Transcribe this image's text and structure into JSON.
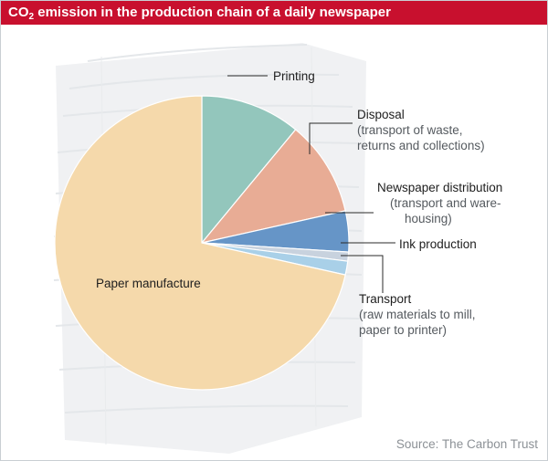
{
  "header": {
    "title_prefix": "CO",
    "title_subscript": "2",
    "title_rest": " emission in the production chain of a daily newspaper",
    "background_color": "#c8102e"
  },
  "chart_data": {
    "type": "pie",
    "title": "CO2 emission in the production chain of a daily newspaper",
    "start": "12 o'clock",
    "direction": "clockwise",
    "slices": [
      {
        "label": "Printing",
        "detail": [],
        "value": 11.0,
        "color": "#93c6bc"
      },
      {
        "label": "Disposal",
        "detail": [
          "(transport of waste,",
          "returns and collections)"
        ],
        "value": 10.5,
        "color": "#e8ac95"
      },
      {
        "label": "Newspaper distribution",
        "detail": [
          "(transport and ware-",
          "housing)"
        ],
        "value": 4.5,
        "color": "#6695c7"
      },
      {
        "label": "Ink production",
        "detail": [],
        "value": 1.0,
        "color": "#c8d2de"
      },
      {
        "label": "Transport",
        "detail": [
          "(raw materials to mill,",
          "paper to printer)"
        ],
        "value": 1.5,
        "color": "#a9d0e8"
      },
      {
        "label": "Paper manufacture",
        "detail": [],
        "value": 71.5,
        "color": "#f5d9ab"
      }
    ]
  },
  "source": "Source: The Carbon Trust"
}
